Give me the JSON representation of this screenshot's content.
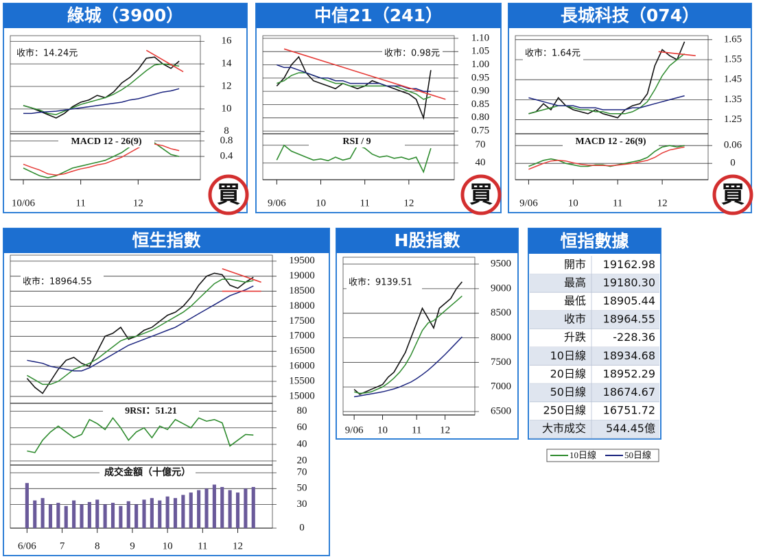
{
  "chart_data": [
    {
      "type": "line",
      "title": "綠城（3900）",
      "stamp": "買",
      "annotation": "收市：14.24元",
      "xlim": [
        -0.5,
        21
      ],
      "ylim": [
        7.8,
        16.5
      ],
      "yticks": [
        8,
        10,
        12,
        14,
        16
      ],
      "series": [
        {
          "color": "#111111",
          "values": [
            10.3,
            10.1,
            9.8,
            9.5,
            9.2,
            9.6,
            10.2,
            10.6,
            10.8,
            11.2,
            11.0,
            11.5,
            12.3,
            12.8,
            13.5,
            14.5,
            14.6,
            14.0,
            13.6,
            14.24
          ]
        },
        {
          "color": "#2e8b2e",
          "values": [
            10.3,
            10.1,
            9.9,
            9.6,
            9.5,
            9.8,
            10.1,
            10.4,
            10.6,
            10.8,
            11.0,
            11.3,
            11.7,
            12.2,
            12.8,
            13.4,
            13.9,
            14.0,
            13.9,
            13.8
          ]
        },
        {
          "color": "#1a237e",
          "values": [
            9.6,
            9.6,
            9.7,
            9.75,
            9.8,
            9.9,
            10.0,
            10.1,
            10.2,
            10.3,
            10.4,
            10.5,
            10.6,
            10.8,
            10.9,
            11.1,
            11.3,
            11.5,
            11.6,
            11.8
          ]
        }
      ],
      "trend_color": "#e53935",
      "trendlines": [
        {
          "x": [
            15,
            19.5
          ],
          "y": [
            15.2,
            13.3
          ]
        }
      ]
    },
    {
      "type": "line",
      "title": "MACD 12 - 26(9)",
      "xlim": [
        -0.5,
        21
      ],
      "ylim": [
        -0.2,
        0.95
      ],
      "yticks": [
        0.8,
        0.4
      ],
      "xticks": [
        {
          "value": 0,
          "label": "10/06"
        },
        {
          "value": 7,
          "label": "11"
        },
        {
          "value": 14,
          "label": "12"
        }
      ],
      "series": [
        {
          "color": "#2e8b2e",
          "values": [
            0.1,
            0.0,
            -0.1,
            -0.15,
            -0.1,
            0.0,
            0.1,
            0.15,
            0.2,
            0.25,
            0.3,
            0.4,
            0.5,
            0.65,
            0.8,
            0.85,
            0.75,
            0.6,
            0.45,
            0.4
          ]
        },
        {
          "color": "#e53935",
          "values": [
            0.2,
            0.12,
            0.05,
            -0.05,
            -0.08,
            -0.05,
            0.02,
            0.08,
            0.12,
            0.18,
            0.22,
            0.3,
            0.38,
            0.5,
            0.62,
            0.72,
            0.72,
            0.68,
            0.6,
            0.55
          ]
        }
      ]
    },
    {
      "type": "line",
      "title": "中信21（241）",
      "stamp": "買",
      "annotation": "收市：0.98元",
      "xlim": [
        -0.5,
        24
      ],
      "ylim": [
        0.74,
        1.11
      ],
      "yticks": [
        {
          "value": 1.1,
          "label": "1.10"
        },
        {
          "value": 1.05,
          "label": "1.05"
        },
        {
          "value": 1,
          "label": "1.00"
        },
        {
          "value": 0.95,
          "label": "0.95"
        },
        {
          "value": 0.9,
          "label": "0.90"
        },
        {
          "value": 0.85,
          "label": "0.85"
        },
        {
          "value": 0.8,
          "label": "0.80"
        },
        {
          "value": 0.75,
          "label": "0.75"
        }
      ],
      "series": [
        {
          "color": "#111111",
          "values": [
            0.92,
            0.95,
            1.0,
            1.03,
            0.97,
            0.94,
            0.93,
            0.92,
            0.91,
            0.93,
            0.92,
            0.91,
            0.92,
            0.94,
            0.93,
            0.92,
            0.91,
            0.9,
            0.89,
            0.87,
            0.8,
            0.98
          ]
        },
        {
          "color": "#2e8b2e",
          "values": [
            0.93,
            0.94,
            0.96,
            0.97,
            0.97,
            0.96,
            0.95,
            0.94,
            0.93,
            0.93,
            0.92,
            0.92,
            0.92,
            0.92,
            0.92,
            0.92,
            0.92,
            0.91,
            0.9,
            0.89,
            0.87,
            0.88
          ]
        },
        {
          "color": "#1a237e",
          "values": [
            1.0,
            0.99,
            0.99,
            0.98,
            0.97,
            0.96,
            0.95,
            0.95,
            0.94,
            0.94,
            0.93,
            0.93,
            0.93,
            0.93,
            0.93,
            0.92,
            0.92,
            0.92,
            0.91,
            0.91,
            0.9,
            0.9
          ]
        }
      ],
      "trend_color": "#e53935",
      "trendlines": [
        {
          "x": [
            1,
            23
          ],
          "y": [
            1.06,
            0.87
          ]
        }
      ]
    },
    {
      "type": "line",
      "title": "RSI / 9",
      "xlim": [
        -0.5,
        24
      ],
      "ylim": [
        12,
        87
      ],
      "yticks": [
        70,
        40
      ],
      "xticks": [
        {
          "value": 0,
          "label": "9/06"
        },
        {
          "value": 6,
          "label": "10"
        },
        {
          "value": 12,
          "label": "11"
        },
        {
          "value": 18,
          "label": "12"
        }
      ],
      "series": [
        {
          "color": "#2e8b2e",
          "values": [
            45,
            70,
            60,
            55,
            50,
            45,
            47,
            44,
            50,
            45,
            48,
            70,
            65,
            55,
            50,
            52,
            48,
            50,
            46,
            50,
            25,
            65
          ]
        }
      ]
    },
    {
      "type": "line",
      "title": "長城科技（074）",
      "stamp": "買",
      "annotation": "收市：1.64元",
      "xlim": [
        -0.5,
        24
      ],
      "ylim": [
        1.18,
        1.67
      ],
      "yticks": [
        1.65,
        1.55,
        1.45,
        1.35,
        1.25
      ],
      "series": [
        {
          "color": "#111111",
          "values": [
            1.28,
            1.29,
            1.33,
            1.3,
            1.36,
            1.32,
            1.3,
            1.29,
            1.28,
            1.3,
            1.28,
            1.27,
            1.26,
            1.3,
            1.32,
            1.33,
            1.38,
            1.52,
            1.6,
            1.57,
            1.55,
            1.64
          ]
        },
        {
          "color": "#2e8b2e",
          "values": [
            1.28,
            1.29,
            1.3,
            1.31,
            1.32,
            1.32,
            1.31,
            1.3,
            1.3,
            1.29,
            1.29,
            1.28,
            1.28,
            1.28,
            1.29,
            1.31,
            1.34,
            1.4,
            1.47,
            1.52,
            1.55,
            1.58
          ]
        },
        {
          "color": "#1a237e",
          "values": [
            1.36,
            1.35,
            1.34,
            1.33,
            1.32,
            1.32,
            1.32,
            1.31,
            1.31,
            1.31,
            1.3,
            1.3,
            1.3,
            1.3,
            1.31,
            1.31,
            1.32,
            1.33,
            1.34,
            1.35,
            1.36,
            1.37
          ]
        }
      ],
      "trend_color": "#e53935",
      "trendlines": [
        {
          "x": [
            17.5,
            22.5
          ],
          "y": [
            1.59,
            1.57
          ]
        }
      ]
    },
    {
      "type": "line",
      "title": "MACD 12 - 26(9)",
      "xlim": [
        -0.5,
        24
      ],
      "ylim": [
        -0.055,
        0.095
      ],
      "yticks": [
        0.06,
        0
      ],
      "xticks": [
        {
          "value": 0,
          "label": "9/06"
        },
        {
          "value": 6,
          "label": "10"
        },
        {
          "value": 12,
          "label": "11"
        },
        {
          "value": 18,
          "label": "12"
        }
      ],
      "series": [
        {
          "color": "#2e8b2e",
          "values": [
            -0.01,
            0.0,
            0.01,
            0.015,
            0.01,
            0.0,
            -0.005,
            -0.01,
            -0.01,
            -0.005,
            -0.005,
            -0.01,
            -0.005,
            0.0,
            0.005,
            0.01,
            0.02,
            0.04,
            0.055,
            0.06,
            0.055,
            0.06
          ]
        },
        {
          "color": "#e53935",
          "values": [
            -0.02,
            -0.01,
            0.0,
            0.008,
            0.01,
            0.008,
            0.002,
            -0.003,
            -0.006,
            -0.007,
            -0.007,
            -0.008,
            -0.006,
            -0.003,
            0.0,
            0.005,
            0.01,
            0.02,
            0.035,
            0.045,
            0.05,
            0.055
          ]
        }
      ]
    },
    {
      "type": "line",
      "title": "恒生指數",
      "annotation": "收市：18964.55",
      "xlim": [
        -1,
        31
      ],
      "ylim": [
        14770,
        19700
      ],
      "yticks": [
        19500,
        19000,
        18500,
        18000,
        17500,
        17000,
        16500,
        16000,
        15500,
        15000
      ],
      "series": [
        {
          "color": "#111111",
          "values": [
            15600,
            15300,
            15100,
            15500,
            15900,
            16200,
            16300,
            16100,
            16000,
            16500,
            17000,
            17100,
            17300,
            16900,
            17000,
            17200,
            17300,
            17500,
            17700,
            17800,
            18000,
            18300,
            18700,
            19000,
            19100,
            19050,
            18700,
            18600,
            18800,
            18964.55
          ]
        },
        {
          "name": "10日線",
          "color": "#2e8b2e",
          "values": [
            15700,
            15550,
            15400,
            15400,
            15500,
            15700,
            15900,
            16000,
            16100,
            16250,
            16450,
            16650,
            16850,
            16950,
            17000,
            17100,
            17200,
            17350,
            17500,
            17650,
            17800,
            18000,
            18250,
            18500,
            18750,
            18900,
            18900,
            18850,
            18800,
            18850
          ]
        },
        {
          "name": "50日線",
          "color": "#1a237e",
          "values": [
            16200,
            16150,
            16100,
            16000,
            15950,
            15900,
            15850,
            15850,
            15950,
            16100,
            16250,
            16400,
            16550,
            16700,
            16800,
            16900,
            17000,
            17100,
            17200,
            17300,
            17450,
            17600,
            17750,
            17900,
            18050,
            18200,
            18350,
            18450,
            18550,
            18674.67
          ]
        }
      ],
      "trend_color": "#e53935",
      "trendlines": [
        {
          "x": [
            25,
            30
          ],
          "y": [
            19250,
            18800
          ]
        },
        {
          "x": [
            25,
            30
          ],
          "y": [
            18500,
            18500
          ]
        }
      ]
    },
    {
      "type": "line",
      "title": "9RSI：51.21",
      "xlim": [
        -1,
        31
      ],
      "ylim": [
        15,
        88
      ],
      "yticks": [
        80,
        60,
        40,
        20
      ],
      "series": [
        {
          "color": "#2e8b2e",
          "values": [
            32,
            30,
            45,
            55,
            62,
            55,
            48,
            52,
            70,
            65,
            58,
            72,
            60,
            45,
            55,
            60,
            48,
            62,
            58,
            70,
            65,
            60,
            72,
            68,
            70,
            66,
            38,
            45,
            52,
            51.21
          ]
        }
      ]
    },
    {
      "type": "bar",
      "title": "成交金額（十億元）",
      "xlim": [
        -1,
        31
      ],
      "ylim": [
        0,
        78
      ],
      "yticks": [
        70,
        50,
        30,
        0
      ],
      "xticks": [
        {
          "value": 0,
          "label": "6/06"
        },
        {
          "value": 4.5,
          "label": "7"
        },
        {
          "value": 9,
          "label": "8"
        },
        {
          "value": 13.5,
          "label": "9"
        },
        {
          "value": 18,
          "label": "10"
        },
        {
          "value": 22.5,
          "label": "11"
        },
        {
          "value": 27,
          "label": "12"
        }
      ],
      "color": "#6a5a9a",
      "values": [
        57,
        35,
        38,
        30,
        32,
        28,
        35,
        30,
        33,
        36,
        30,
        32,
        28,
        34,
        30,
        36,
        38,
        35,
        40,
        38,
        42,
        45,
        48,
        50,
        55,
        52,
        48,
        45,
        50,
        52
      ]
    },
    {
      "type": "line",
      "title": "H股指數",
      "annotation": "收市：9139.51",
      "xlim": [
        -0.5,
        21
      ],
      "ylim": [
        6430,
        9640
      ],
      "yticks": [
        9500,
        9000,
        8500,
        8000,
        7500,
        7000,
        6500
      ],
      "xticks": [
        {
          "value": 0,
          "label": "9/06"
        },
        {
          "value": 5,
          "label": "10"
        },
        {
          "value": 11,
          "label": "11"
        },
        {
          "value": 16,
          "label": "12"
        }
      ],
      "series": [
        {
          "color": "#111111",
          "values": [
            6950,
            6850,
            6900,
            6950,
            7000,
            7050,
            7200,
            7300,
            7500,
            7700,
            8000,
            8300,
            8600,
            8400,
            8200,
            8600,
            8700,
            8800,
            9000,
            9139.51
          ]
        },
        {
          "color": "#2e8b2e",
          "values": [
            6900,
            6870,
            6880,
            6900,
            6950,
            7000,
            7080,
            7180,
            7300,
            7450,
            7650,
            7900,
            8150,
            8300,
            8350,
            8450,
            8550,
            8650,
            8750,
            8850
          ]
        },
        {
          "color": "#1a237e",
          "values": [
            6800,
            6820,
            6840,
            6860,
            6880,
            6900,
            6930,
            6960,
            7000,
            7050,
            7100,
            7170,
            7250,
            7340,
            7440,
            7550,
            7660,
            7780,
            7900,
            8020
          ]
        }
      ]
    }
  ],
  "table": {
    "title": "恒指數據",
    "rows": [
      [
        "開市",
        "19162.98"
      ],
      [
        "最高",
        "19180.30"
      ],
      [
        "最低",
        "18905.44"
      ],
      [
        "收市",
        "18964.55"
      ],
      [
        "升跌",
        "-228.36"
      ],
      [
        "10日線",
        "18934.68"
      ],
      [
        "20日線",
        "18952.29"
      ],
      [
        "50日線",
        "18674.67"
      ],
      [
        "250日線",
        "16751.72"
      ],
      [
        "大市成交",
        "544.45億"
      ]
    ]
  }
}
